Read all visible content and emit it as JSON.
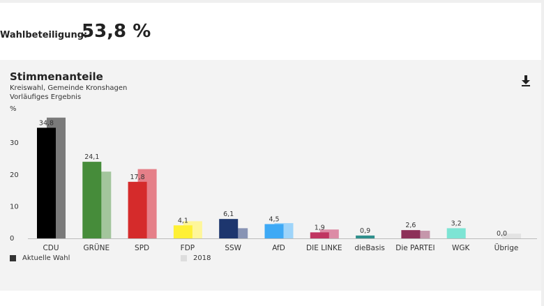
{
  "turnout": {
    "label": "Wahlbeteiligung:",
    "value": "53,8 %"
  },
  "chart_data": {
    "type": "bar",
    "title": "Stimmenanteile",
    "subtitle": [
      "Kreiswahl, Gemeinde Kronshagen",
      "Vorläufiges Ergebnis"
    ],
    "ylabel": "%",
    "ylim": [
      0,
      38
    ],
    "yticks": [
      0,
      10,
      20,
      30
    ],
    "grid": false,
    "legend_position": "bottom",
    "categories": [
      "CDU",
      "GRÜNE",
      "SPD",
      "FDP",
      "SSW",
      "AfD",
      "DIE LINKE",
      "dieBasis",
      "Die PARTEI",
      "WGK",
      "Übrige"
    ],
    "series": [
      {
        "name": "Aktuelle Wahl",
        "values": [
          34.8,
          24.1,
          17.8,
          4.1,
          6.1,
          4.5,
          1.9,
          0.9,
          2.6,
          3.2,
          0.0
        ],
        "labels": [
          "34,8",
          "24,1",
          "17,8",
          "4,1",
          "6,1",
          "4,5",
          "1,9",
          "0,9",
          "2,6",
          "3,2",
          "0,0"
        ],
        "colors": [
          "#000000",
          "#468c3a",
          "#d52b2b",
          "#fef035",
          "#1d366e",
          "#3ea9f5",
          "#c03561",
          "#2f8f8c",
          "#8c3058",
          "#7de4d4",
          "#c9c9c9"
        ]
      },
      {
        "name": "2018",
        "values": [
          38.0,
          21.0,
          21.8,
          5.4,
          3.2,
          4.8,
          2.8,
          0.0,
          2.4,
          0.0,
          1.5
        ],
        "colors": [
          "#7a7a7a",
          "#a3c59c",
          "#e57f88",
          "#fef69a",
          "#8894b4",
          "#9ed4fa",
          "#dc8ca6",
          "#97c7c5",
          "#c597ab",
          "#bff1e9",
          "#e3e3e3"
        ]
      }
    ],
    "legend_colors": {
      "current": "#333333",
      "previous": "#dddddd"
    }
  },
  "icons": {
    "download": "download-icon"
  }
}
